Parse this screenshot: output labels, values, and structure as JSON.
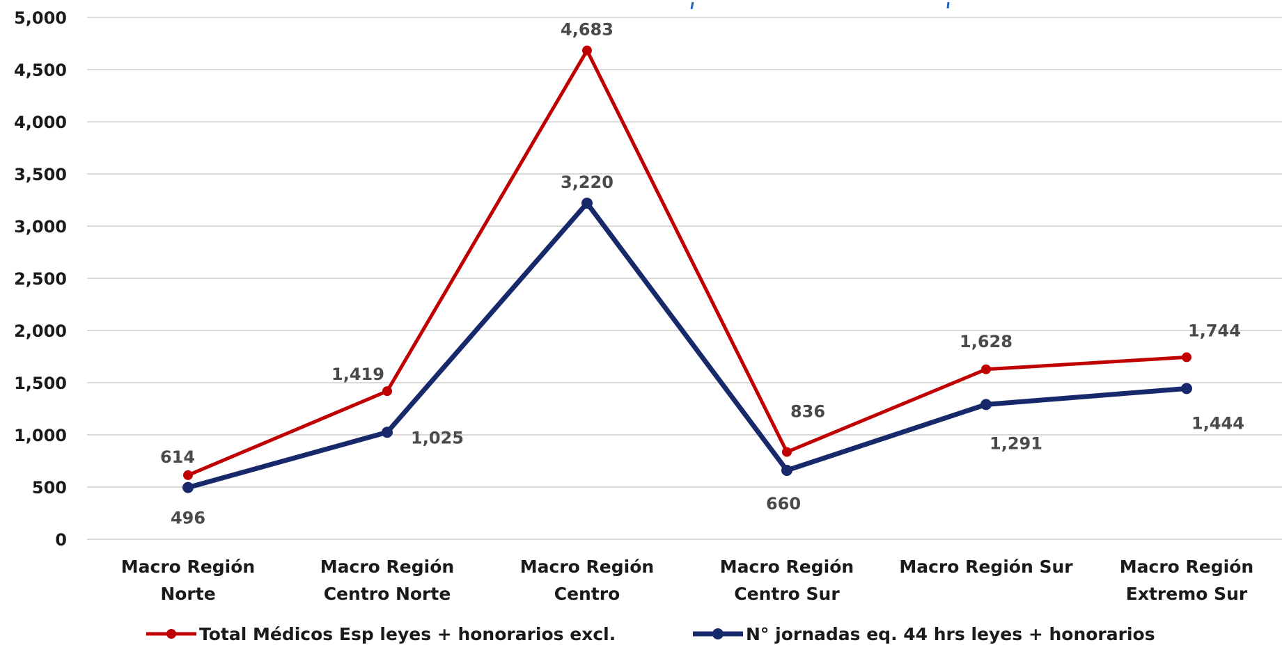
{
  "chart_data": {
    "type": "line",
    "categories": [
      [
        "Macro Región",
        "Norte"
      ],
      [
        "Macro Región",
        "Centro Norte"
      ],
      [
        "Macro Región",
        "Centro"
      ],
      [
        "Macro Región",
        "Centro Sur"
      ],
      [
        "Macro Región Sur"
      ],
      [
        "Macro Región",
        "Extremo Sur"
      ]
    ],
    "series": [
      {
        "name": "Total Médicos Esp leyes + honorarios excl.",
        "color": "#c00000",
        "values": [
          614,
          1419,
          4683,
          836,
          1628,
          1744
        ],
        "labels": [
          "614",
          "1,419",
          "4,683",
          "836",
          "1,628",
          "1,744"
        ]
      },
      {
        "name": "N° jornadas eq. 44 hrs leyes + honorarios",
        "color": "#17296b",
        "values": [
          496,
          1025,
          3220,
          660,
          1291,
          1444
        ],
        "labels": [
          "496",
          "1,025",
          "3,220",
          "660",
          "1,291",
          "1,444"
        ]
      }
    ],
    "ylim": [
      0,
      5000
    ],
    "yticks": [
      0,
      500,
      1000,
      1500,
      2000,
      2500,
      3000,
      3500,
      4000,
      4500,
      5000
    ],
    "ytick_labels": [
      "0",
      "500",
      "1,000",
      "1,500",
      "2,000",
      "2,500",
      "3,000",
      "3,500",
      "4,000",
      "4,500",
      "5,000"
    ],
    "grid": true,
    "legend_position": "bottom",
    "title": "",
    "xlabel": "",
    "ylabel": ""
  }
}
